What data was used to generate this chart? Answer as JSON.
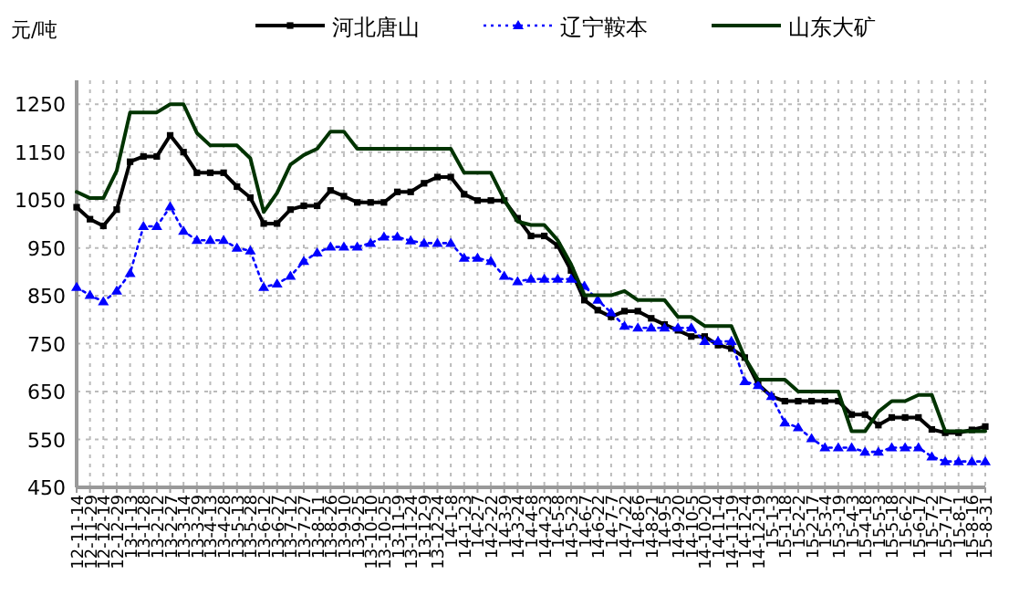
{
  "chart_data": {
    "type": "line",
    "ylabel": "元/吨",
    "categories": [
      "12-11-14",
      "12-11-29",
      "12-12-14",
      "12-12-29",
      "13-1-13",
      "13-1-28",
      "13-2-12",
      "13-2-27",
      "13-3-14",
      "13-3-29",
      "13-4-13",
      "13-4-28",
      "13-5-13",
      "13-5-28",
      "13-6-12",
      "13-6-27",
      "13-7-12",
      "13-7-27",
      "13-8-11",
      "13-8-26",
      "13-9-10",
      "13-9-25",
      "13-10-10",
      "13-10-25",
      "13-11-9",
      "13-11-24",
      "13-12-9",
      "13-12-24",
      "14-1-8",
      "14-1-23",
      "14-2-7",
      "14-2-22",
      "14-3-9",
      "14-3-24",
      "14-4-8",
      "14-4-23",
      "14-5-8",
      "14-5-23",
      "14-6-7",
      "14-6-22",
      "14-7-7",
      "14-7-22",
      "14-8-6",
      "14-8-21",
      "14-9-5",
      "14-9-20",
      "14-10-5",
      "14-10-20",
      "14-11-4",
      "14-11-19",
      "14-12-4",
      "14-12-19",
      "15-1-3",
      "15-1-18",
      "15-2-2",
      "15-2-17",
      "15-3-4",
      "15-3-19",
      "15-4-3",
      "15-4-18",
      "15-5-3",
      "15-5-18",
      "15-6-2",
      "15-6-17",
      "15-7-2",
      "15-7-17",
      "15-8-1",
      "15-8-16",
      "15-8-31"
    ],
    "series": [
      {
        "name": "河北唐山",
        "color": "#000000",
        "marker": "square",
        "line_style": "solid",
        "values": [
          1035,
          1010,
          996,
          1030,
          1130,
          1141,
          1141,
          1185,
          1150,
          1107,
          1107,
          1107,
          1078,
          1055,
          1001,
          1001,
          1030,
          1038,
          1038,
          1070,
          1058,
          1045,
          1045,
          1045,
          1067,
          1067,
          1085,
          1098,
          1098,
          1062,
          1049,
          1049,
          1049,
          1012,
          975,
          975,
          955,
          903,
          841,
          820,
          806,
          818,
          818,
          803,
          790,
          778,
          765,
          765,
          747,
          740,
          721,
          665,
          640,
          630,
          630,
          630,
          630,
          630,
          602,
          602,
          580,
          596,
          596,
          596,
          571,
          564,
          564,
          570,
          577
        ]
      },
      {
        "name": "辽宁鞍本",
        "color": "#0000ff",
        "marker": "triangle",
        "line_style": "dotted",
        "values": [
          868,
          851,
          838,
          860,
          897,
          995,
          995,
          1036,
          985,
          966,
          966,
          966,
          950,
          944,
          868,
          875,
          891,
          922,
          940,
          952,
          952,
          952,
          960,
          973,
          973,
          965,
          960,
          960,
          960,
          929,
          929,
          922,
          891,
          880,
          885,
          885,
          885,
          885,
          870,
          841,
          815,
          787,
          783,
          783,
          783,
          783,
          783,
          755,
          755,
          755,
          671,
          663,
          640,
          585,
          575,
          552,
          533,
          533,
          533,
          524,
          524,
          533,
          533,
          533,
          514,
          504,
          504,
          504,
          504
        ]
      },
      {
        "name": "山东大矿",
        "color": "#003300",
        "marker": "none",
        "line_style": "solid",
        "values": [
          1067,
          1054,
          1054,
          1111,
          1233,
          1233,
          1233,
          1250,
          1250,
          1190,
          1164,
          1164,
          1164,
          1137,
          1025,
          1065,
          1124,
          1144,
          1157,
          1193,
          1193,
          1157,
          1157,
          1157,
          1157,
          1157,
          1157,
          1157,
          1157,
          1107,
          1107,
          1107,
          1051,
          1005,
          998,
          998,
          966,
          916,
          851,
          851,
          851,
          860,
          841,
          841,
          841,
          806,
          806,
          787,
          787,
          787,
          721,
          675,
          675,
          675,
          650,
          650,
          650,
          650,
          567,
          567,
          608,
          630,
          630,
          643,
          643,
          567,
          567,
          567,
          567
        ]
      }
    ],
    "ylim": [
      450,
      1300
    ],
    "yticks": [
      450,
      550,
      650,
      750,
      850,
      950,
      1050,
      1150,
      1250
    ],
    "grid": true,
    "legend": "top"
  }
}
